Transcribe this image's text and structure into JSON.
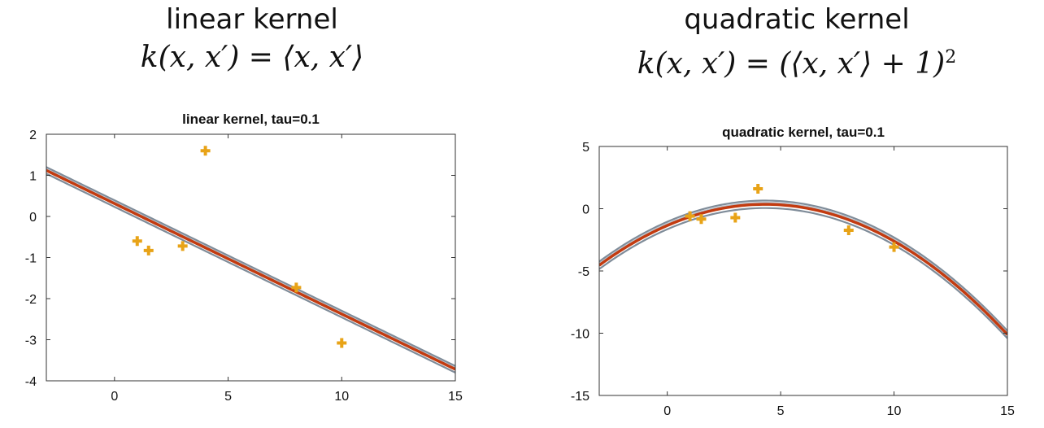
{
  "headings": [
    {
      "name": "linear kernel",
      "formula": "k(x, x′) = ⟨x, x′⟩",
      "formula_sup": ""
    },
    {
      "name": "quadratic kernel",
      "formula": "k(x, x′) = (⟨x, x′⟩ + 1)",
      "formula_sup": "2"
    }
  ],
  "colors": {
    "points": "#e8a317",
    "mean_line": "#c33b10",
    "band": "#7f8c99",
    "axes": "#333333"
  },
  "chart_data": [
    {
      "type": "line",
      "title": "linear kernel, tau=0.1",
      "xlabel": "",
      "ylabel": "",
      "xlim": [
        -3,
        15
      ],
      "ylim": [
        -4,
        2
      ],
      "xticks": [
        0,
        5,
        10,
        15
      ],
      "yticks": [
        2,
        1,
        0,
        -1,
        -2,
        -3,
        -4
      ],
      "grid": false,
      "points": {
        "x": [
          1,
          1.5,
          3,
          4,
          8,
          10
        ],
        "y": [
          -0.6,
          -0.83,
          -0.72,
          1.6,
          -1.73,
          -3.08
        ]
      },
      "mean": {
        "x": [
          -3,
          15
        ],
        "y": [
          1.12,
          -3.72
        ]
      },
      "band_offset": 0.08
    },
    {
      "type": "line",
      "title": "quadratic kernel, tau=0.1",
      "xlabel": "",
      "ylabel": "",
      "xlim": [
        -3,
        15
      ],
      "ylim": [
        -15,
        5
      ],
      "xticks": [
        0,
        5,
        10,
        15
      ],
      "yticks": [
        5,
        0,
        -5,
        -10,
        -15
      ],
      "grid": false,
      "points": {
        "x": [
          1,
          1.5,
          3,
          4,
          8,
          10
        ],
        "y": [
          -0.6,
          -0.83,
          -0.72,
          1.6,
          -1.73,
          -3.08
        ]
      },
      "mean_quadratic": {
        "a": -0.0916,
        "b": 0.79,
        "c": -1.35
      },
      "band_offset": 0.3
    }
  ]
}
